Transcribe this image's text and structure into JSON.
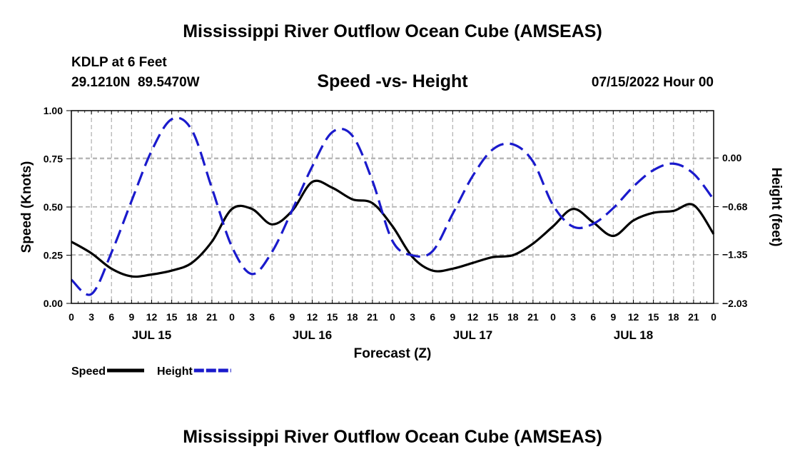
{
  "header": {
    "title": "Mississippi River Outflow Ocean Cube (AMSEAS)",
    "station": "KDLP at 6 Feet",
    "coords": "29.1210N  89.5470W",
    "subtitle": "Speed -vs- Height",
    "run_time": "07/15/2022 Hour 00"
  },
  "footer": {
    "title": "Mississippi River Outflow Ocean Cube (AMSEAS)"
  },
  "chart_data": {
    "type": "line",
    "title": "Speed -vs- Height",
    "xlabel": "Forecast (Z)",
    "ylabel_left": "Speed (Knots)",
    "ylabel_right": "Height (feet)",
    "xlim": [
      0,
      96
    ],
    "ylim_left": [
      0,
      1
    ],
    "ylim_right": [
      -2.03,
      0.66
    ],
    "grid": true,
    "x_ticks": [
      0,
      3,
      6,
      9,
      12,
      15,
      18,
      21,
      24,
      27,
      30,
      33,
      36,
      39,
      42,
      45,
      48,
      51,
      54,
      57,
      60,
      63,
      66,
      69,
      72,
      75,
      78,
      81,
      84,
      87,
      90,
      93,
      96
    ],
    "x_tick_labels": [
      "0",
      "3",
      "6",
      "9",
      "12",
      "15",
      "18",
      "21",
      "0",
      "3",
      "6",
      "9",
      "12",
      "15",
      "18",
      "21",
      "0",
      "3",
      "6",
      "9",
      "12",
      "15",
      "18",
      "21",
      "0",
      "3",
      "6",
      "9",
      "12",
      "15",
      "18",
      "21",
      "0"
    ],
    "day_labels": [
      {
        "x": 12,
        "label": "JUL 15"
      },
      {
        "x": 36,
        "label": "JUL 16"
      },
      {
        "x": 60,
        "label": "JUL 17"
      },
      {
        "x": 84,
        "label": "JUL 18"
      }
    ],
    "y_left_ticks": [
      0,
      0.25,
      0.5,
      0.75,
      1.0
    ],
    "y_left_tick_labels": [
      "0.00",
      "0.25",
      "0.50",
      "0.75",
      "1.00"
    ],
    "y_right_ticks": [
      -2.03,
      -1.35,
      -0.68,
      0.0
    ],
    "y_right_tick_labels": [
      "−2.03",
      "−1.35",
      "−0.68",
      "0.00"
    ],
    "legend": [
      {
        "name": "Speed",
        "color": "#000000",
        "dash": "solid"
      },
      {
        "name": "Height",
        "color": "#1a1acc",
        "dash": "dashed"
      }
    ],
    "series": [
      {
        "name": "Speed",
        "axis": "left",
        "color": "#000000",
        "x": [
          0,
          3,
          6,
          9,
          12,
          15,
          18,
          21,
          24,
          27,
          30,
          33,
          36,
          39,
          42,
          45,
          48,
          51,
          54,
          57,
          60,
          63,
          66,
          69,
          72,
          75,
          78,
          81,
          84,
          87,
          90,
          93,
          96
        ],
        "values": [
          0.32,
          0.26,
          0.18,
          0.14,
          0.15,
          0.17,
          0.21,
          0.32,
          0.49,
          0.49,
          0.41,
          0.48,
          0.63,
          0.6,
          0.54,
          0.52,
          0.4,
          0.24,
          0.17,
          0.18,
          0.21,
          0.24,
          0.25,
          0.31,
          0.4,
          0.49,
          0.42,
          0.35,
          0.43,
          0.47,
          0.48,
          0.51,
          0.36
        ]
      },
      {
        "name": "Height",
        "axis": "right",
        "color": "#1a1acc",
        "x": [
          0,
          3,
          6,
          9,
          12,
          15,
          18,
          21,
          24,
          27,
          30,
          33,
          36,
          39,
          42,
          45,
          48,
          51,
          54,
          57,
          60,
          63,
          66,
          69,
          72,
          75,
          78,
          81,
          84,
          87,
          90,
          93,
          96
        ],
        "values": [
          -1.7,
          -1.9,
          -1.32,
          -0.6,
          0.1,
          0.54,
          0.39,
          -0.42,
          -1.24,
          -1.62,
          -1.31,
          -0.73,
          -0.12,
          0.36,
          0.31,
          -0.32,
          -1.16,
          -1.36,
          -1.3,
          -0.78,
          -0.25,
          0.12,
          0.19,
          -0.05,
          -0.66,
          -0.96,
          -0.92,
          -0.7,
          -0.4,
          -0.17,
          -0.08,
          -0.22,
          -0.58
        ]
      }
    ]
  }
}
